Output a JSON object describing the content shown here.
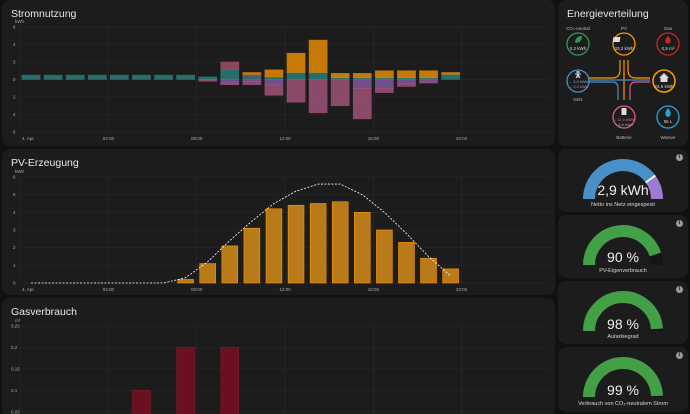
{
  "cards": {
    "strom": {
      "title": "Stromnutzung"
    },
    "pv": {
      "title": "PV-Erzeugung"
    },
    "gas": {
      "title": "Gasverbrauch"
    },
    "energy": {
      "title": "Energieverteilung"
    }
  },
  "colors": {
    "pv": "#ff9800",
    "pv_bar": "#b97a1a",
    "grid": "#2e8a84",
    "battery_in": "#8d5fb0",
    "battery_out": "#b0566f",
    "return": "#b25a86",
    "gas": "#6b1020",
    "gauge_green": "#43a047",
    "gauge_blue": "#4a90c8",
    "gauge_purple": "#9c7bd3",
    "co2": "#2e9b5a",
    "gas_node": "#c62828",
    "water": "#29a5d6"
  },
  "energy": {
    "nodes": {
      "co2": {
        "label": "CO₂-neutral",
        "value": "0,2 kWh",
        "icon": "leaf-icon"
      },
      "solar": {
        "label": "PV",
        "value": "33,2 kWh",
        "icon": "solar-panel-icon"
      },
      "gas": {
        "label": "Gas",
        "value": "0,5 m³",
        "icon": "flame-icon"
      },
      "grid": {
        "label": "Netz",
        "value_in": "← 2,9 kWh",
        "value_out": "→ 0,4 kWh",
        "icon": "transmission-tower-icon"
      },
      "home": {
        "label": "",
        "value": "24,6 kWh",
        "icon": "home-icon"
      },
      "battery": {
        "label": "Batterie",
        "value_in": "↓ 11,5 kWh",
        "value_out": "↑ 9,8 kWh",
        "icon": "battery-icon"
      },
      "water": {
        "label": "Wasser",
        "value": "56 L",
        "icon": "water-drop-icon"
      }
    }
  },
  "gauges": [
    {
      "value": "2,9 kWh",
      "label": "Netto ins Netz eingespeist",
      "fraction": 0.8
    },
    {
      "value": "90 %",
      "label": "PV-Eigenverbrauch",
      "fraction": 0.9
    },
    {
      "value": "98 %",
      "label": "Autarkiegrad",
      "fraction": 0.98
    },
    {
      "value": "99 %",
      "label": "Verbrauch von CO₂-neutralem Strom",
      "fraction": 0.99
    }
  ],
  "chart_data": [
    {
      "type": "bar",
      "title": "Stromnutzung",
      "ylabel": "kWh",
      "ylim": [
        -6,
        6
      ],
      "yticks": [
        6,
        4,
        2,
        0,
        2,
        4,
        6
      ],
      "xticks": [
        "4. Apr.",
        "04:00",
        "08:00",
        "12:00",
        "16:00",
        "20:00"
      ],
      "x": [
        "00",
        "01",
        "02",
        "03",
        "04",
        "05",
        "06",
        "07",
        "08",
        "09",
        "10",
        "11",
        "12",
        "13",
        "14",
        "15",
        "16",
        "17",
        "18",
        "19"
      ],
      "series": [
        {
          "name": "",
          "key": "grid",
          "values": [
            0.5,
            0.5,
            0.5,
            0.5,
            0.5,
            0.5,
            0.5,
            0.5,
            0.3,
            1.2,
            0.4,
            0.3,
            0.8,
            0.8,
            0.2,
            0.2,
            0.2,
            0.2,
            0.2,
            0.6
          ]
        },
        {
          "name": "",
          "key": "battery_out",
          "values": [
            0,
            0,
            0,
            0,
            0,
            0,
            0,
            0,
            0,
            0.8,
            0.2,
            0,
            0,
            0,
            0,
            0,
            0,
            0,
            0,
            0
          ]
        },
        {
          "name": "",
          "key": "pv",
          "values": [
            0,
            0,
            0,
            0,
            0,
            0,
            0,
            0,
            0,
            0,
            0.2,
            0.8,
            2.2,
            3.7,
            0.5,
            0.5,
            0.8,
            0.8,
            0.8,
            0.2
          ]
        },
        {
          "name": "",
          "key": "battery_in",
          "values": [
            0,
            0,
            0,
            0,
            0,
            0,
            0,
            0,
            0,
            -0.4,
            -0.2,
            -0.6,
            0,
            0,
            0,
            -1.0,
            -1.0,
            -0.5,
            -0.3,
            0
          ]
        },
        {
          "name": "",
          "key": "return",
          "values": [
            0,
            0,
            0,
            0,
            0,
            0,
            0,
            0,
            -0.2,
            -0.2,
            -0.4,
            -1.2,
            -2.6,
            -3.8,
            -3.0,
            -3.5,
            -0.5,
            -0.3,
            -0.1,
            0
          ]
        }
      ]
    },
    {
      "type": "bar",
      "title": "PV-Erzeugung",
      "ylabel": "kWh",
      "ylim": [
        0,
        6
      ],
      "yticks": [
        6,
        5,
        4,
        3,
        2,
        1,
        0
      ],
      "xticks": [
        "4. Apr.",
        "04:00",
        "08:00",
        "12:00",
        "16:00",
        "20:00"
      ],
      "x": [
        "00",
        "01",
        "02",
        "03",
        "04",
        "05",
        "06",
        "07",
        "08",
        "09",
        "10",
        "11",
        "12",
        "13",
        "14",
        "15",
        "16",
        "17",
        "18",
        "19"
      ],
      "series": [
        {
          "name": "",
          "values": [
            0,
            0,
            0,
            0,
            0,
            0,
            0,
            0.2,
            1.1,
            2.1,
            3.1,
            4.2,
            4.4,
            4.5,
            4.6,
            4.0,
            3.0,
            2.3,
            1.4,
            0.8
          ]
        },
        {
          "name": "",
          "style": "forecast-dashed",
          "values": [
            0,
            0,
            0,
            0,
            0,
            0,
            0,
            0.3,
            1.2,
            2.4,
            3.5,
            4.5,
            5.2,
            5.6,
            5.6,
            5.0,
            4.0,
            2.8,
            1.5,
            0.4
          ]
        }
      ]
    },
    {
      "type": "bar",
      "title": "Gasverbrauch",
      "ylabel": "m³",
      "ylim": [
        0,
        0.25
      ],
      "yticks": [
        "0,25",
        "0,2",
        "0,15",
        "0,1",
        "0,05"
      ],
      "x": [
        "00",
        "01",
        "02",
        "03",
        "04",
        "05",
        "06",
        "07",
        "08",
        "09"
      ],
      "series": [
        {
          "name": "",
          "values": [
            0,
            0,
            0,
            0,
            0,
            0.1,
            0,
            0.2,
            0,
            0.2
          ]
        }
      ]
    }
  ]
}
